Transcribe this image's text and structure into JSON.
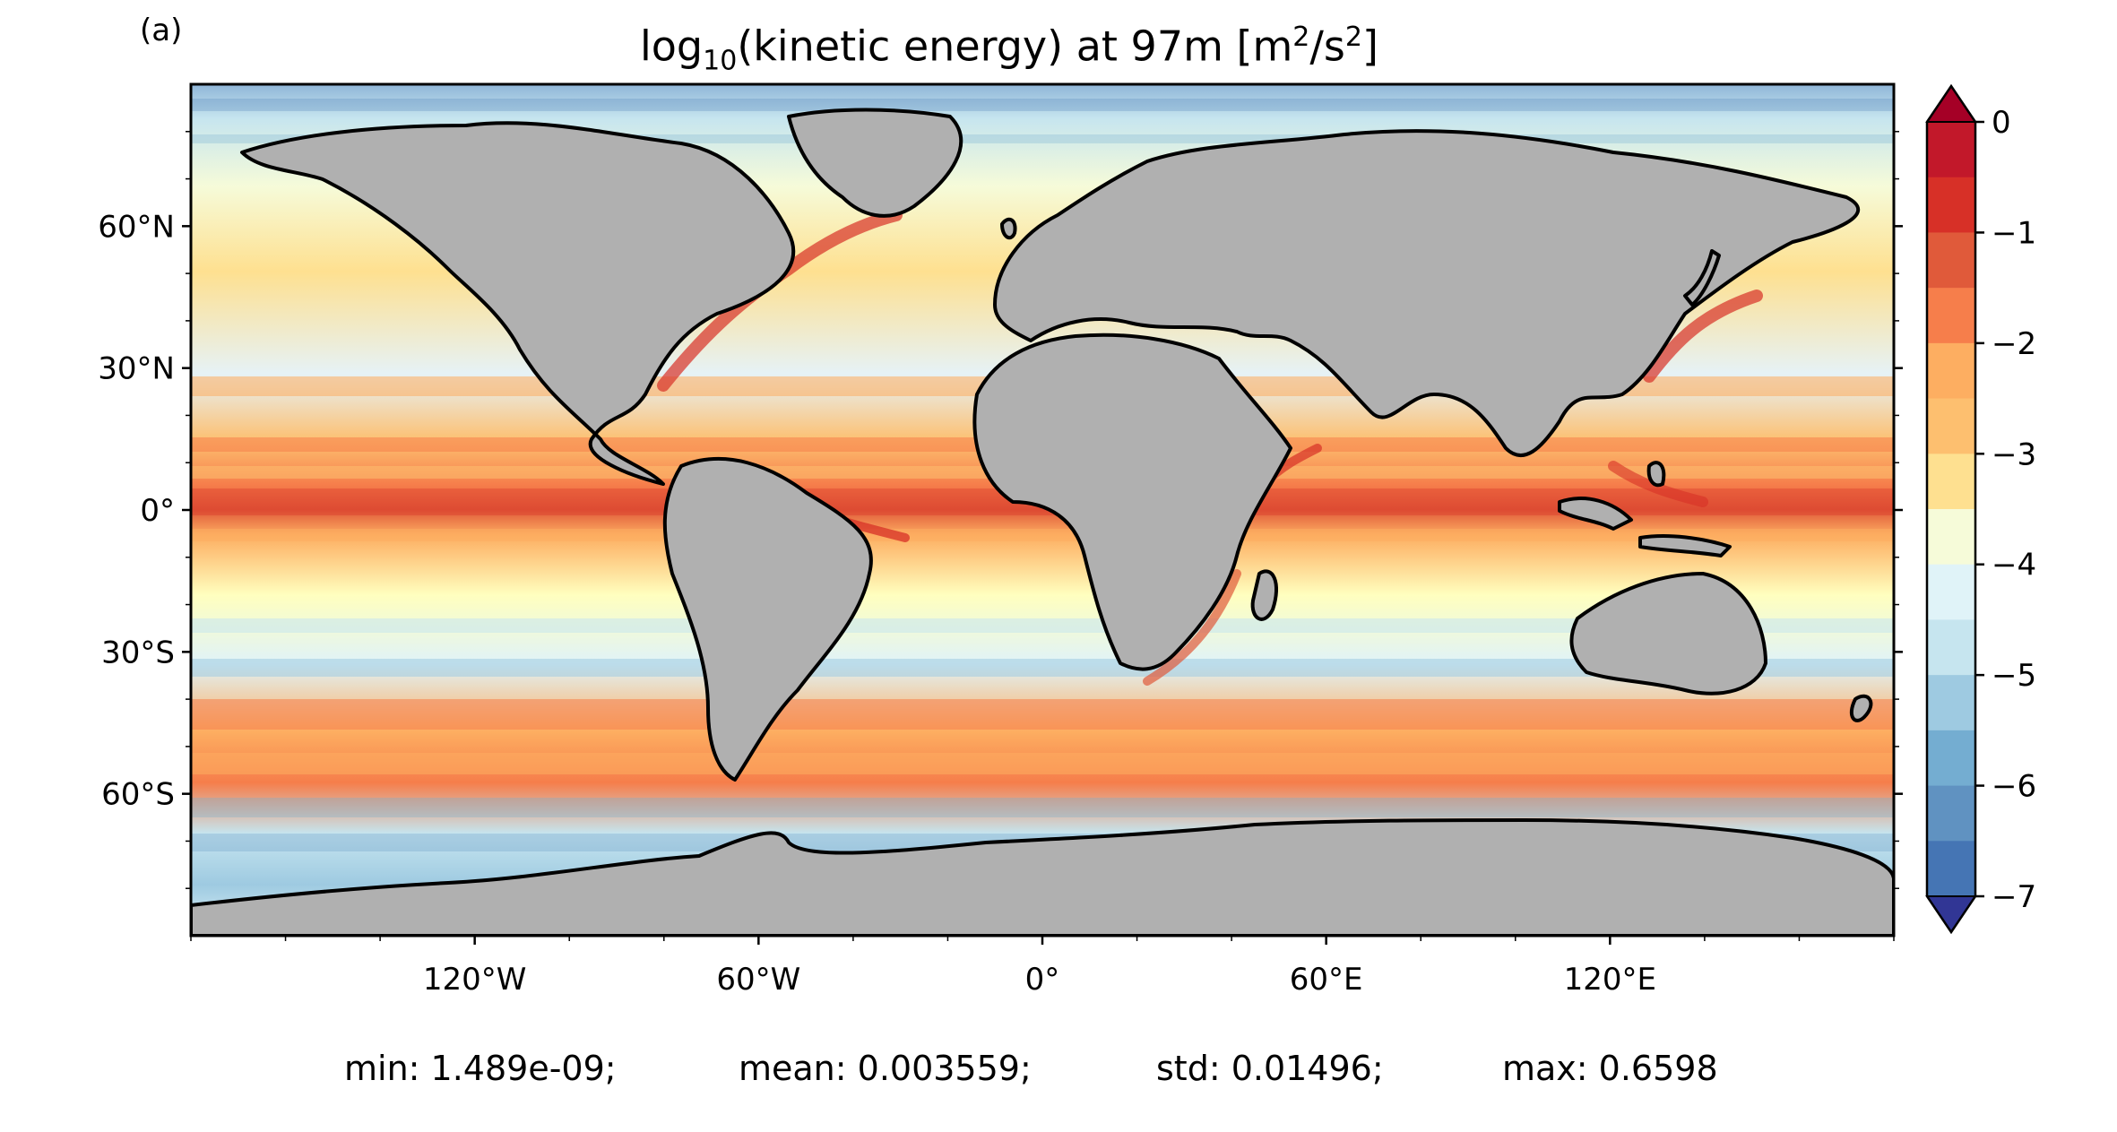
{
  "panel_label": "(a)",
  "title": {
    "prefix": "log",
    "sub": "10",
    "middle": "(kinetic energy) at 97m [m",
    "sup1": "2",
    "mid2": "/s",
    "sup2": "2",
    "suffix": "]"
  },
  "map": {
    "projection": "PlateCarree",
    "lon_range": [
      -180,
      180
    ],
    "lat_range": [
      -90,
      90
    ],
    "land_color": "#b0b0b0",
    "coastline_color": "#000000",
    "lat_ticks": [
      "60°N",
      "30°N",
      "0°",
      "30°S",
      "60°S"
    ],
    "lon_ticks": [
      "120°W",
      "60°W",
      "0°",
      "60°E",
      "120°E"
    ]
  },
  "colorbar": {
    "ticks": [
      "0",
      "−1",
      "−2",
      "−3",
      "−4",
      "−5",
      "−6",
      "−7"
    ],
    "range": [
      -7,
      0
    ],
    "levels_per_unit": 2,
    "extend": "both",
    "colors": [
      "#313695",
      "#4575b4",
      "#6092c1",
      "#74add1",
      "#9ecae1",
      "#c6e5ef",
      "#e0f3f8",
      "#f6fbd9",
      "#ffffbf",
      "#fee090",
      "#fdbf6f",
      "#fdae61",
      "#f67e4b",
      "#e05a3a",
      "#d73027",
      "#c2182a",
      "#a50026"
    ],
    "under_color": "#313695",
    "over_color": "#a50026"
  },
  "stats": {
    "min": "min: 1.489e-09;",
    "mean": "mean: 0.003559;",
    "std": "std: 0.01496;",
    "max": "max: 0.6598"
  }
}
